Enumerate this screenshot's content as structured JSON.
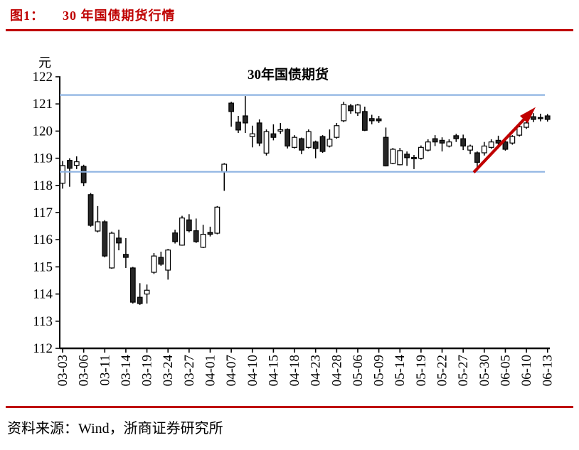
{
  "figure": {
    "caption_prefix": "图1：",
    "caption": "30 年国债期货行情",
    "source": "资料来源：Wind，浙商证券研究所"
  },
  "chart_data": {
    "type": "candlestick",
    "title": "30年国债期货",
    "ylabel": "元",
    "ylim": [
      112,
      122
    ],
    "ytick_step": 1,
    "grid": false,
    "label_every": 3,
    "x_labels": [
      "03-03",
      "03-06",
      "03-11",
      "03-14",
      "03-19",
      "03-24",
      "03-27",
      "04-01",
      "04-07",
      "04-10",
      "04-15",
      "04-18",
      "04-23",
      "04-28",
      "05-06",
      "05-09",
      "05-14",
      "05-19",
      "05-22",
      "05-27",
      "05-30",
      "06-05",
      "06-10",
      "06-13"
    ],
    "candles": [
      [
        118.08,
        118.9,
        117.88,
        118.73
      ],
      [
        118.92,
        119.0,
        117.95,
        118.63
      ],
      [
        118.74,
        119.07,
        118.6,
        118.87
      ],
      [
        118.7,
        118.76,
        117.97,
        118.1
      ],
      [
        117.66,
        117.72,
        116.48,
        116.53
      ],
      [
        116.32,
        117.24,
        116.27,
        116.66
      ],
      [
        116.66,
        116.72,
        115.35,
        115.4
      ],
      [
        114.96,
        116.3,
        114.93,
        116.24
      ],
      [
        116.06,
        116.37,
        115.61,
        115.88
      ],
      [
        115.46,
        116.06,
        114.96,
        115.35
      ],
      [
        114.96,
        115.0,
        113.65,
        113.7
      ],
      [
        113.88,
        114.4,
        113.6,
        113.65
      ],
      [
        114.0,
        114.35,
        113.65,
        114.14
      ],
      [
        114.8,
        115.51,
        114.74,
        115.4
      ],
      [
        115.35,
        115.56,
        115.04,
        115.1
      ],
      [
        114.88,
        115.66,
        114.53,
        115.62
      ],
      [
        116.25,
        116.37,
        115.86,
        115.93
      ],
      [
        115.8,
        116.88,
        115.78,
        116.8
      ],
      [
        116.73,
        116.94,
        116.27,
        116.33
      ],
      [
        116.33,
        116.78,
        115.88,
        115.93
      ],
      [
        115.72,
        116.55,
        115.69,
        116.2
      ],
      [
        116.27,
        116.48,
        116.12,
        116.2
      ],
      [
        116.24,
        117.24,
        116.2,
        117.2
      ],
      [
        118.5,
        118.82,
        117.8,
        118.78
      ],
      [
        121.03,
        121.08,
        120.16,
        120.72
      ],
      [
        120.33,
        120.56,
        119.93,
        120.04
      ],
      [
        120.56,
        121.29,
        119.93,
        120.3
      ],
      [
        119.8,
        120.2,
        119.4,
        119.9
      ],
      [
        120.3,
        120.43,
        119.45,
        119.56
      ],
      [
        119.19,
        120.06,
        119.1,
        119.98
      ],
      [
        119.9,
        120.25,
        119.66,
        119.77
      ],
      [
        120.0,
        120.3,
        119.9,
        120.05
      ],
      [
        120.06,
        120.1,
        119.36,
        119.45
      ],
      [
        119.4,
        119.85,
        119.36,
        119.77
      ],
      [
        119.72,
        119.76,
        119.15,
        119.3
      ],
      [
        119.4,
        120.06,
        119.36,
        119.98
      ],
      [
        119.6,
        119.65,
        119.0,
        119.36
      ],
      [
        119.8,
        119.85,
        119.2,
        119.25
      ],
      [
        119.45,
        120.06,
        119.4,
        119.7
      ],
      [
        119.77,
        120.3,
        119.72,
        120.2
      ],
      [
        120.38,
        121.08,
        120.33,
        120.98
      ],
      [
        120.93,
        121.0,
        120.64,
        120.75
      ],
      [
        120.67,
        121.0,
        120.56,
        120.96
      ],
      [
        120.72,
        120.9,
        120.0,
        120.03
      ],
      [
        120.46,
        120.6,
        120.25,
        120.38
      ],
      [
        120.45,
        120.56,
        120.3,
        120.38
      ],
      [
        119.77,
        120.13,
        118.7,
        118.72
      ],
      [
        118.81,
        119.38,
        118.78,
        119.33
      ],
      [
        118.76,
        119.38,
        118.74,
        119.28
      ],
      [
        119.15,
        119.25,
        118.72,
        119.02
      ],
      [
        119.03,
        119.12,
        118.6,
        118.98
      ],
      [
        119.0,
        119.47,
        118.95,
        119.4
      ],
      [
        119.3,
        119.7,
        119.25,
        119.6
      ],
      [
        119.72,
        119.85,
        119.45,
        119.6
      ],
      [
        119.66,
        119.77,
        119.25,
        119.56
      ],
      [
        119.45,
        119.7,
        119.4,
        119.6
      ],
      [
        119.83,
        119.9,
        119.6,
        119.72
      ],
      [
        119.72,
        119.87,
        119.3,
        119.45
      ],
      [
        119.3,
        119.5,
        119.15,
        119.45
      ],
      [
        119.2,
        119.25,
        118.55,
        118.85
      ],
      [
        119.2,
        119.6,
        119.1,
        119.45
      ],
      [
        119.4,
        119.7,
        119.35,
        119.6
      ],
      [
        119.66,
        119.83,
        119.38,
        119.56
      ],
      [
        119.6,
        119.72,
        119.28,
        119.33
      ],
      [
        119.56,
        119.85,
        119.5,
        119.8
      ],
      [
        119.85,
        120.26,
        119.8,
        120.16
      ],
      [
        120.14,
        120.4,
        120.08,
        120.3
      ],
      [
        120.53,
        120.66,
        120.33,
        120.43
      ],
      [
        120.5,
        120.64,
        120.36,
        120.46
      ],
      [
        120.56,
        120.63,
        120.35,
        120.43
      ]
    ],
    "hlines": [
      121.33,
      118.5
    ],
    "arrow": {
      "from": [
        58.5,
        118.48
      ],
      "to": [
        67.3,
        120.88
      ]
    },
    "colors": {
      "up": "#ffffff",
      "down": "#262626",
      "outline": "#000000",
      "axis": "#000000",
      "hline": "#8db3e2",
      "arrow": "#c00000",
      "accent_red": "#bf0000"
    }
  }
}
